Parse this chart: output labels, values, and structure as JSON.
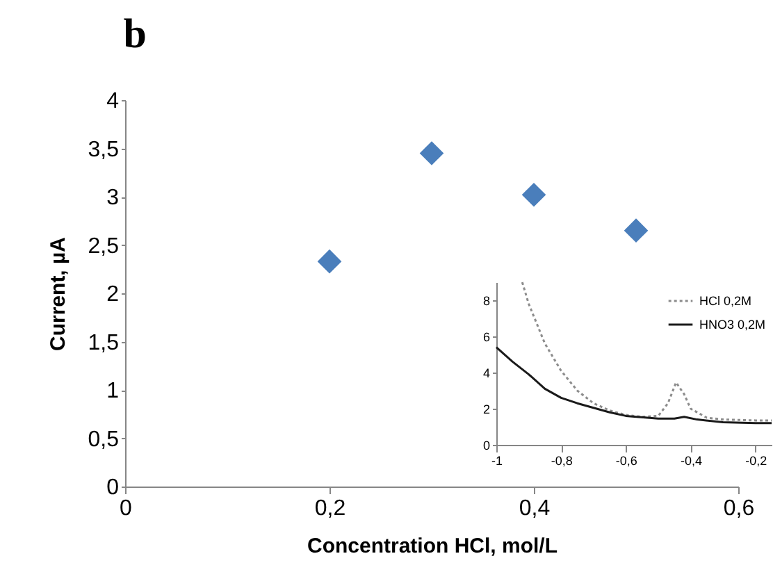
{
  "chart_data": [
    {
      "type": "scatter",
      "title": "b",
      "xlabel": "Concentration HCl, mol/L",
      "ylabel": "Current,  µA",
      "x": [
        0.2,
        0.3,
        0.4,
        0.5
      ],
      "values": [
        2.33,
        3.45,
        3.02,
        2.65
      ],
      "color": "#4a7ebb",
      "marker": "diamond",
      "xlim": [
        0,
        0.6
      ],
      "xticks": [
        0,
        {
          "value": 0.2,
          "label": "0,2"
        },
        {
          "value": 0.4,
          "label": "0,4"
        },
        {
          "value": 0.6,
          "label": "0,6"
        }
      ],
      "ylim": [
        0,
        4
      ],
      "yticks": [
        0,
        {
          "value": 0.5,
          "label": "0,5"
        },
        1,
        {
          "value": 1.5,
          "label": "1,5"
        },
        2,
        {
          "value": 2.5,
          "label": "2,5"
        },
        3,
        {
          "value": 3.5,
          "label": "3,5"
        },
        4
      ],
      "grid": false
    },
    {
      "type": "line",
      "legend": "top right",
      "grid": false,
      "xlim": [
        -1,
        -0.15
      ],
      "xticks": [
        {
          "value": -1,
          "label": "-1"
        },
        {
          "value": -0.8,
          "label": "-0,8"
        },
        {
          "value": -0.6,
          "label": "-0,6"
        },
        {
          "value": -0.4,
          "label": "-0,4"
        },
        {
          "value": -0.2,
          "label": "-0,2"
        }
      ],
      "ylim": [
        0,
        9
      ],
      "yticks": [
        0,
        2,
        4,
        6,
        8
      ],
      "series": [
        {
          "name": "HCl 0,2M",
          "color": "#8c8c8c",
          "line_style": "dotted",
          "x": [
            -0.92,
            -0.9,
            -0.85,
            -0.8,
            -0.75,
            -0.7,
            -0.65,
            -0.6,
            -0.55,
            -0.5,
            -0.47,
            -0.445,
            -0.42,
            -0.4,
            -0.35,
            -0.3,
            -0.2,
            -0.15
          ],
          "values": [
            9,
            7.8,
            5.6,
            4.1,
            3.0,
            2.3,
            1.9,
            1.65,
            1.55,
            1.6,
            2.3,
            3.45,
            2.8,
            2.0,
            1.5,
            1.4,
            1.35,
            1.35
          ]
        },
        {
          "name": "HNO3 0,2M",
          "color": "#1a1a1a",
          "line_style": "solid",
          "x": [
            -1,
            -0.95,
            -0.9,
            -0.85,
            -0.8,
            -0.75,
            -0.7,
            -0.65,
            -0.6,
            -0.5,
            -0.45,
            -0.42,
            -0.38,
            -0.3,
            -0.2,
            -0.15
          ],
          "values": [
            5.4,
            4.6,
            3.9,
            3.1,
            2.6,
            2.3,
            2.05,
            1.8,
            1.6,
            1.45,
            1.45,
            1.55,
            1.4,
            1.25,
            1.2,
            1.2
          ]
        }
      ]
    }
  ]
}
